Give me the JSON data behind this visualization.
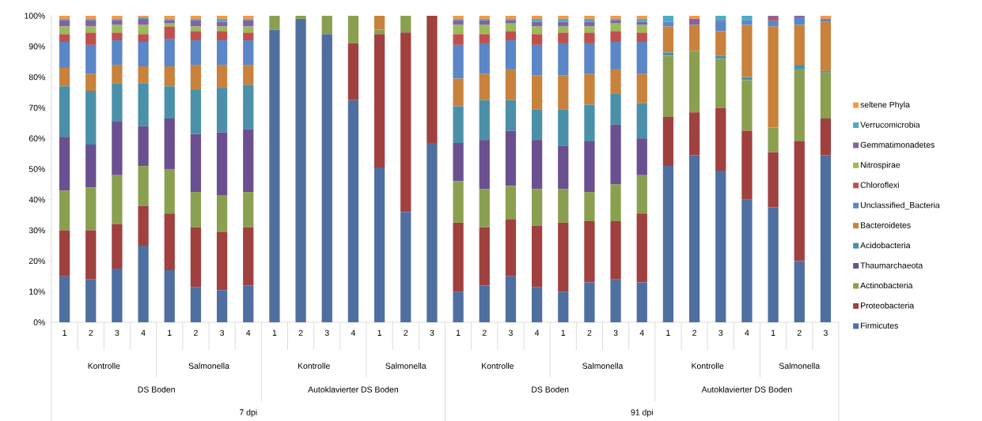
{
  "chart_data": {
    "type": "bar",
    "stacked": true,
    "categories": [
      "1",
      "2",
      "3",
      "4",
      "1",
      "2",
      "3",
      "4",
      "1",
      "2",
      "3",
      "4",
      "1",
      "2",
      "3",
      "1",
      "2",
      "3",
      "4",
      "1",
      "2",
      "3",
      "4",
      "1",
      "2",
      "3",
      "4",
      "1",
      "2",
      "3"
    ],
    "series": [
      {
        "name": "Firmicutes",
        "color": "#4f6fa0",
        "values": [
          15,
          14,
          17.5,
          25,
          17,
          11.5,
          10.5,
          12,
          95.5,
          99,
          94,
          72.5,
          50.5,
          36,
          58.5,
          10,
          12,
          15,
          11.5,
          10,
          13,
          14,
          13,
          51,
          54.5,
          49.5,
          40,
          37.5,
          20,
          54.5
        ]
      },
      {
        "name": "Proteobacteria",
        "color": "#a0403f",
        "values": [
          15,
          16,
          14.5,
          13,
          18.5,
          19.5,
          19,
          19,
          0,
          0,
          0,
          18.5,
          43.5,
          58.5,
          41.5,
          22.5,
          19,
          18.5,
          20,
          22.5,
          20,
          19,
          22.5,
          16,
          14,
          20.5,
          22.5,
          18,
          39,
          12
        ]
      },
      {
        "name": "Actinobacteria",
        "color": "#8aa050",
        "values": [
          13,
          14,
          16,
          13,
          14.5,
          11.5,
          12,
          11.5,
          4.5,
          1,
          6,
          9,
          1.5,
          5.5,
          0,
          13.5,
          12.5,
          11,
          12,
          11,
          9.5,
          12,
          12.5,
          20,
          20,
          16,
          16.5,
          8,
          23.5,
          15
        ]
      },
      {
        "name": "Thaumarchaeota",
        "color": "#6a5090",
        "values": [
          17.5,
          14,
          17.5,
          13,
          16.5,
          19,
          20.5,
          20.5,
          0,
          0,
          0,
          0,
          0,
          0,
          0,
          12.5,
          16,
          18,
          16,
          14,
          16.5,
          19.5,
          12,
          0,
          0,
          0,
          0,
          0,
          0,
          0
        ]
      },
      {
        "name": "Acidobacteria",
        "color": "#4a90a8",
        "values": [
          16.5,
          17.5,
          12.5,
          14,
          10.5,
          14.5,
          14.5,
          14.5,
          0,
          0,
          0,
          0,
          0,
          0,
          0,
          12,
          13,
          10,
          10,
          12,
          12,
          10,
          11.5,
          1,
          0,
          1,
          1,
          0,
          1.5,
          0.5
        ]
      },
      {
        "name": "Bacteroidetes",
        "color": "#c8823c",
        "values": [
          6,
          5.5,
          6,
          5.5,
          6.5,
          8,
          7.5,
          6.5,
          0,
          0,
          0,
          0,
          4.5,
          0,
          0,
          9,
          8.5,
          10,
          11,
          11,
          10,
          8,
          9.5,
          8.5,
          8.5,
          8,
          17,
          33,
          13,
          16
        ]
      },
      {
        "name": "Unclassified_Bacteria",
        "color": "#5b86c8",
        "values": [
          8.5,
          9.5,
          8,
          8,
          9,
          8,
          8,
          8,
          0,
          0,
          0,
          0,
          0,
          0,
          0,
          11,
          10,
          9.5,
          10,
          10.5,
          10,
          9,
          10.5,
          1.5,
          0,
          3,
          1.5,
          2,
          2.5,
          1
        ]
      },
      {
        "name": "Chloroflexi",
        "color": "#c0504d",
        "values": [
          2.5,
          4,
          2.5,
          2.5,
          4,
          3,
          3,
          2.5,
          0,
          0,
          0,
          0,
          0,
          0,
          0,
          3.5,
          3,
          3,
          3.5,
          3.5,
          3.5,
          3.5,
          3,
          0,
          0,
          0,
          0,
          1,
          0,
          0
        ]
      },
      {
        "name": "Nitrospirae",
        "color": "#9bbb59",
        "values": [
          2.5,
          2,
          2.5,
          3,
          1,
          1.5,
          1.5,
          2,
          0,
          0,
          0,
          0,
          0,
          0,
          0,
          3,
          3,
          2.5,
          2.5,
          2,
          2,
          2.5,
          2.5,
          0,
          0,
          0,
          0,
          0,
          0,
          0
        ]
      },
      {
        "name": "Gemmatimonadetes",
        "color": "#8064a2",
        "values": [
          2,
          2,
          1.5,
          2,
          1,
          2,
          1.5,
          2,
          0,
          0,
          0,
          0,
          0,
          0,
          0,
          1.5,
          1.5,
          1,
          1.5,
          1.5,
          1.5,
          1,
          1,
          0,
          2,
          0.5,
          0,
          0.5,
          0.5,
          0
        ]
      },
      {
        "name": "Verrucomicrobia",
        "color": "#4bacc6",
        "values": [
          0.5,
          0.5,
          0.5,
          0.5,
          0.5,
          0.5,
          1,
          0.5,
          0,
          0,
          0,
          0,
          0,
          0,
          0,
          0.5,
          0.5,
          0.5,
          1,
          1,
          1,
          0.5,
          1,
          2,
          0,
          1.5,
          1.5,
          0,
          0,
          0
        ]
      },
      {
        "name": "seltene Phyla",
        "color": "#f79646",
        "values": [
          1,
          1,
          1,
          0.5,
          1,
          1,
          1,
          1,
          0,
          0,
          0,
          0,
          0,
          0,
          0,
          1,
          1,
          1,
          1,
          1,
          1,
          1,
          1,
          0,
          1,
          0,
          0,
          0,
          0,
          1
        ]
      }
    ],
    "ylim": [
      0,
      100
    ],
    "yticks": [
      {
        "value": 0,
        "label": "0%"
      },
      {
        "value": 10,
        "label": "10%"
      },
      {
        "value": 20,
        "label": "20%"
      },
      {
        "value": 30,
        "label": "30%"
      },
      {
        "value": 40,
        "label": "40%"
      },
      {
        "value": 50,
        "label": "50%"
      },
      {
        "value": 60,
        "label": "60%"
      },
      {
        "value": 70,
        "label": "70%"
      },
      {
        "value": 80,
        "label": "80%"
      },
      {
        "value": 90,
        "label": "90%"
      },
      {
        "value": 100,
        "label": "100%"
      }
    ],
    "legend": "right",
    "annotations": [
      "Kontrolle",
      "Salmonella",
      "Kontrolle",
      "Salmonella",
      "Kontrolle",
      "Salmonella",
      "Kontrolle",
      "Salmonella",
      "DS Boden",
      "Autoklavierter DS Boden",
      "DS Boden",
      "Autoklavierter DS Boden",
      "7 dpi",
      "91 dpi"
    ]
  }
}
